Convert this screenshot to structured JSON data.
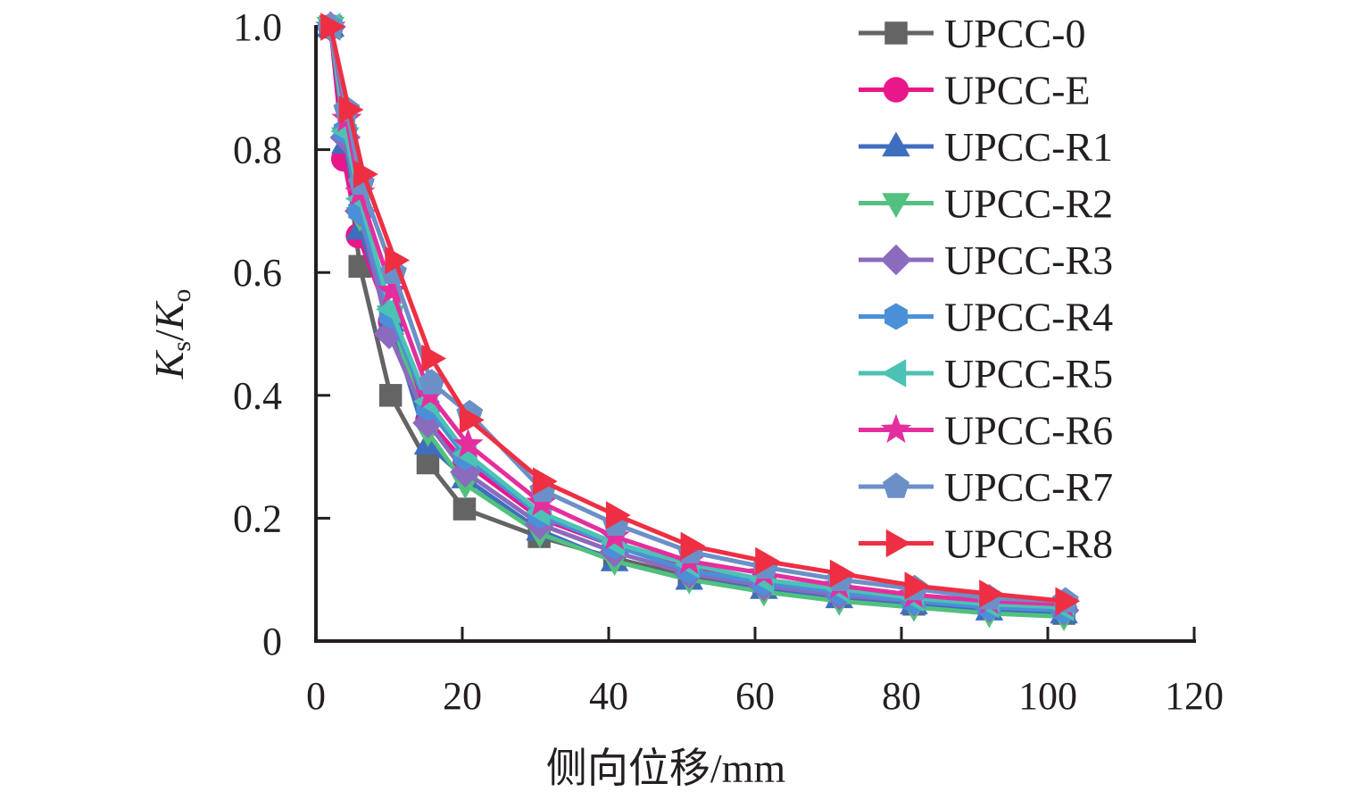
{
  "chart_data": {
    "type": "line",
    "title": "",
    "xlabel": "侧向位移/mm",
    "ylabel": {
      "main": "K",
      "sub1": "s",
      "sep": "/",
      "main2": "K",
      "sub2": "o"
    },
    "xlim": [
      0,
      120
    ],
    "ylim": [
      0,
      1.0
    ],
    "xticks": [
      0,
      20,
      40,
      60,
      80,
      100,
      120
    ],
    "xtick_labels": [
      "0",
      "20",
      "40",
      "60",
      "80",
      "100",
      "120"
    ],
    "yticks": [
      0,
      0.2,
      0.4,
      0.6,
      0.8,
      1.0
    ],
    "ytick_labels": [
      "0",
      "0.2",
      "0.4",
      "0.6",
      "0.8",
      "1.0"
    ],
    "grid": false,
    "legend_position": "top-right",
    "series": [
      {
        "name": "UPCC-0",
        "color": "#646464",
        "marker": "square",
        "x": [
          2,
          6,
          10.2,
          15.3,
          20.3,
          30.5,
          40.8,
          51,
          61.2,
          71.5,
          81.7,
          92,
          102.2
        ],
        "y": [
          1.0,
          0.61,
          0.4,
          0.29,
          0.215,
          0.17,
          0.135,
          0.105,
          0.09,
          0.075,
          0.06,
          0.055,
          0.045
        ]
      },
      {
        "name": "UPCC-E",
        "color": "#e8178a",
        "marker": "circle",
        "x": [
          2,
          3.8,
          5.8,
          10.2,
          15.3,
          20.4,
          30.6,
          40.8,
          51,
          61.2,
          71.5,
          81.7,
          92,
          102.2
        ],
        "y": [
          1.0,
          0.785,
          0.66,
          0.52,
          0.36,
          0.29,
          0.2,
          0.155,
          0.12,
          0.1,
          0.085,
          0.07,
          0.06,
          0.055
        ]
      },
      {
        "name": "UPCC-R1",
        "color": "#3f6ebf",
        "marker": "triangle-up",
        "x": [
          2,
          4,
          6,
          10.2,
          15.3,
          20.4,
          30.6,
          40.8,
          51,
          61.2,
          71.5,
          81.7,
          92,
          102.2
        ],
        "y": [
          1.0,
          0.81,
          0.67,
          0.52,
          0.32,
          0.265,
          0.18,
          0.13,
          0.1,
          0.085,
          0.07,
          0.06,
          0.05,
          0.045
        ]
      },
      {
        "name": "UPCC-R2",
        "color": "#52c17f",
        "marker": "triangle-down",
        "x": [
          2,
          4,
          6,
          10.2,
          15.3,
          20.4,
          30.6,
          40.8,
          51,
          61.2,
          71.5,
          81.7,
          92,
          102.2
        ],
        "y": [
          1.0,
          0.82,
          0.69,
          0.53,
          0.34,
          0.255,
          0.175,
          0.13,
          0.1,
          0.08,
          0.065,
          0.055,
          0.045,
          0.04
        ]
      },
      {
        "name": "UPCC-R3",
        "color": "#8a6bbd",
        "marker": "diamond",
        "x": [
          2,
          4,
          6,
          10,
          15.3,
          20.4,
          30.6,
          40.8,
          51,
          61.2,
          71.5,
          81.7,
          92,
          102.2
        ],
        "y": [
          1.0,
          0.82,
          0.7,
          0.5,
          0.355,
          0.275,
          0.19,
          0.145,
          0.11,
          0.09,
          0.075,
          0.065,
          0.055,
          0.05
        ]
      },
      {
        "name": "UPCC-R4",
        "color": "#4a90d9",
        "marker": "hexagon",
        "x": [
          2,
          4,
          6,
          10.2,
          15.3,
          20.4,
          30.6,
          40.8,
          51,
          61.2,
          71.5,
          81.7,
          92,
          102.2
        ],
        "y": [
          1.0,
          0.83,
          0.7,
          0.53,
          0.38,
          0.3,
          0.205,
          0.155,
          0.115,
          0.095,
          0.08,
          0.065,
          0.055,
          0.05
        ]
      },
      {
        "name": "UPCC-R5",
        "color": "#4cc2b4",
        "marker": "triangle-left",
        "x": [
          2,
          4,
          6,
          10.2,
          15.3,
          20.6,
          30.6,
          40.8,
          51,
          61.2,
          71.5,
          81.7,
          92,
          102.2
        ],
        "y": [
          1.0,
          0.83,
          0.72,
          0.54,
          0.39,
          0.305,
          0.21,
          0.16,
          0.125,
          0.1,
          0.085,
          0.07,
          0.06,
          0.055
        ]
      },
      {
        "name": "UPCC-R6",
        "color": "#e52e9e",
        "marker": "star",
        "x": [
          2,
          4.2,
          6,
          10.4,
          15.6,
          20.8,
          30.8,
          40.8,
          51,
          61.2,
          71.5,
          81.7,
          92,
          102.2
        ],
        "y": [
          1.0,
          0.85,
          0.73,
          0.57,
          0.4,
          0.32,
          0.225,
          0.17,
          0.13,
          0.11,
          0.09,
          0.075,
          0.065,
          0.06
        ]
      },
      {
        "name": "UPCC-R7",
        "color": "#6b90c8",
        "marker": "pentagon",
        "x": [
          2,
          4.2,
          6.2,
          10.6,
          15.8,
          21,
          31,
          41,
          51.2,
          61.4,
          71.6,
          81.8,
          92,
          102.4
        ],
        "y": [
          1.0,
          0.865,
          0.745,
          0.6,
          0.42,
          0.37,
          0.245,
          0.19,
          0.145,
          0.12,
          0.1,
          0.085,
          0.07,
          0.065
        ]
      },
      {
        "name": "UPCC-R8",
        "color": "#ee2f43",
        "marker": "triangle-right",
        "x": [
          2,
          4.5,
          6.5,
          10.8,
          15.8,
          21,
          31,
          41,
          51.2,
          61.4,
          71.6,
          81.8,
          92,
          102.4
        ],
        "y": [
          1.0,
          0.865,
          0.76,
          0.62,
          0.46,
          0.36,
          0.26,
          0.205,
          0.155,
          0.13,
          0.11,
          0.09,
          0.077,
          0.065
        ]
      }
    ]
  }
}
